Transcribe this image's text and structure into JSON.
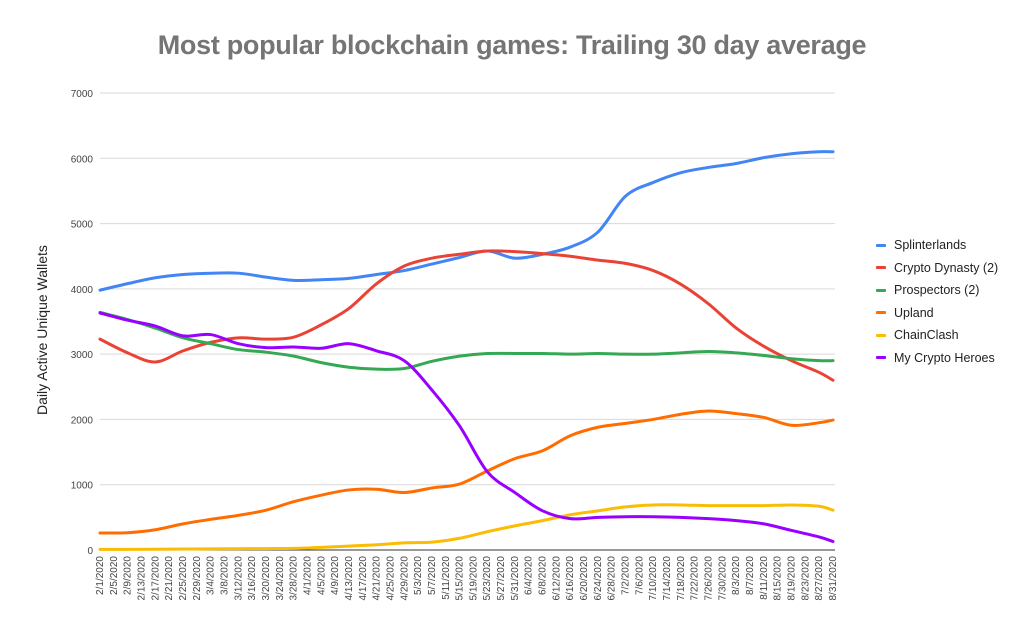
{
  "title": "Most popular blockchain games: Trailing 30 day average",
  "chart_data": {
    "type": "line",
    "title": "Most popular blockchain games: Trailing 30 day average",
    "xlabel": "",
    "ylabel": "Daily Active Unique Wallets",
    "ylim": [
      0,
      7000
    ],
    "yticks": [
      0,
      1000,
      2000,
      3000,
      4000,
      5000,
      6000,
      7000
    ],
    "grid": true,
    "legend_position": "right",
    "x_tick_labels": [
      "2/1/2020",
      "2/5/2020",
      "2/9/2020",
      "2/13/2020",
      "2/17/2020",
      "2/21/2020",
      "2/25/2020",
      "2/29/2020",
      "3/4/2020",
      "3/8/2020",
      "3/12/2020",
      "3/16/2020",
      "3/20/2020",
      "3/24/2020",
      "3/28/2020",
      "4/1/2020",
      "4/5/2020",
      "4/9/2020",
      "4/13/2020",
      "4/17/2020",
      "4/21/2020",
      "4/25/2020",
      "4/29/2020",
      "5/3/2020",
      "5/7/2020",
      "5/11/2020",
      "5/15/2020",
      "5/19/2020",
      "5/23/2020",
      "5/27/2020",
      "5/31/2020",
      "6/4/2020",
      "6/8/2020",
      "6/12/2020",
      "6/16/2020",
      "6/20/2020",
      "6/24/2020",
      "6/28/2020",
      "7/2/2020",
      "7/6/2020",
      "7/10/2020",
      "7/14/2020",
      "7/18/2020",
      "7/22/2020",
      "7/26/2020",
      "7/30/2020",
      "8/3/2020",
      "8/7/2020",
      "8/11/2020",
      "8/15/2020",
      "8/19/2020",
      "8/23/2020",
      "8/27/2020",
      "8/31/2020"
    ],
    "x": [
      "2/1",
      "2/9",
      "2/17",
      "2/25",
      "3/4",
      "3/12",
      "3/20",
      "3/28",
      "4/5",
      "4/13",
      "4/21",
      "4/29",
      "5/7",
      "5/15",
      "5/23",
      "5/31",
      "6/8",
      "6/16",
      "6/24",
      "7/2",
      "7/10",
      "7/18",
      "7/26",
      "8/3",
      "8/11",
      "8/19",
      "8/27",
      "8/31"
    ],
    "series": [
      {
        "name": "Splinterlands",
        "color": "#4285f4",
        "values": [
          3980,
          4080,
          4170,
          4220,
          4240,
          4240,
          4180,
          4130,
          4140,
          4160,
          4220,
          4280,
          4380,
          4480,
          4580,
          4470,
          4530,
          4640,
          4870,
          5420,
          5630,
          5780,
          5860,
          5920,
          6010,
          6070,
          6100,
          6100
        ]
      },
      {
        "name": "Crypto Dynasty (2)",
        "color": "#ea4335",
        "values": [
          3230,
          3020,
          2880,
          3050,
          3180,
          3250,
          3230,
          3260,
          3450,
          3700,
          4080,
          4350,
          4470,
          4530,
          4580,
          4570,
          4540,
          4500,
          4440,
          4390,
          4280,
          4070,
          3770,
          3400,
          3120,
          2900,
          2720,
          2600
        ]
      },
      {
        "name": "Prospectors (2)",
        "color": "#34a853",
        "values": [
          3640,
          3530,
          3400,
          3250,
          3160,
          3070,
          3030,
          2970,
          2870,
          2800,
          2770,
          2780,
          2890,
          2970,
          3010,
          3010,
          3010,
          3000,
          3010,
          3000,
          3000,
          3020,
          3040,
          3020,
          2980,
          2930,
          2900,
          2900
        ]
      },
      {
        "name": "Upland",
        "color": "#ff6d01",
        "values": [
          260,
          265,
          310,
          400,
          470,
          530,
          610,
          740,
          840,
          920,
          930,
          880,
          950,
          1010,
          1210,
          1400,
          1520,
          1750,
          1880,
          1940,
          2000,
          2080,
          2130,
          2090,
          2030,
          1910,
          1950,
          1990
        ]
      },
      {
        "name": "ChainClash",
        "color": "#fbbc04",
        "values": [
          10,
          10,
          12,
          15,
          18,
          20,
          22,
          25,
          40,
          60,
          80,
          110,
          120,
          180,
          280,
          370,
          450,
          540,
          600,
          660,
          690,
          690,
          680,
          680,
          680,
          690,
          670,
          610
        ]
      },
      {
        "name": "My Crypto Heroes",
        "color": "#9900ff",
        "values": [
          3630,
          3520,
          3430,
          3280,
          3300,
          3160,
          3100,
          3110,
          3090,
          3160,
          3050,
          2900,
          2450,
          1900,
          1200,
          880,
          600,
          480,
          500,
          510,
          510,
          500,
          480,
          450,
          400,
          300,
          200,
          130
        ]
      }
    ]
  }
}
